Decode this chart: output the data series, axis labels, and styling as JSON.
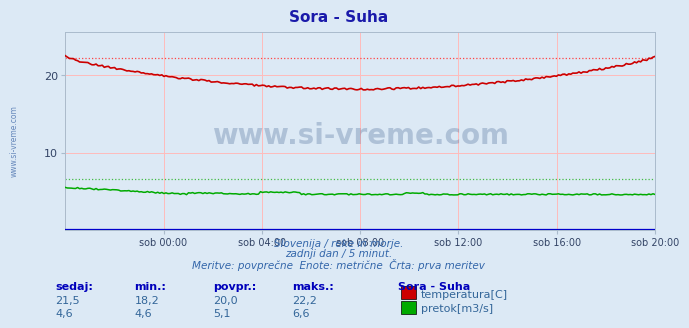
{
  "title": "Sora - Suha",
  "title_color": "#1a1aaa",
  "background_color": "#dce9f5",
  "plot_bg_color": "#dce9f5",
  "grid_color": "#ffbbbb",
  "xlabel_ticks": [
    "sob 00:00",
    "sob 04:00",
    "sob 08:00",
    "sob 12:00",
    "sob 16:00",
    "sob 20:00"
  ],
  "xlim": [
    0,
    287
  ],
  "ylim": [
    0,
    25.5
  ],
  "temp_color": "#cc0000",
  "flow_color": "#00aa00",
  "height_color": "#0000cc",
  "dashed_temp_color": "#ff4444",
  "dashed_flow_color": "#44bb44",
  "footer_line1": "Slovenija / reke in morje.",
  "footer_line2": "zadnji dan / 5 minut.",
  "footer_line3": "Meritve: povprečne  Enote: metrične  Črta: prva meritev",
  "legend_title": "Sora - Suha",
  "legend_temp": "temperatura[C]",
  "legend_flow": "pretok[m3/s]",
  "stat_headers": [
    "sedaj:",
    "min.:",
    "povpr.:",
    "maks.:"
  ],
  "stat_temp": [
    "21,5",
    "18,2",
    "20,0",
    "22,2"
  ],
  "stat_flow": [
    "4,6",
    "4,6",
    "5,1",
    "6,6"
  ],
  "sidebar_text": "www.si-vreme.com",
  "sidebar_color": "#6688bb",
  "temp_dashed_y": 22.2,
  "flow_dashed_y": 6.6
}
